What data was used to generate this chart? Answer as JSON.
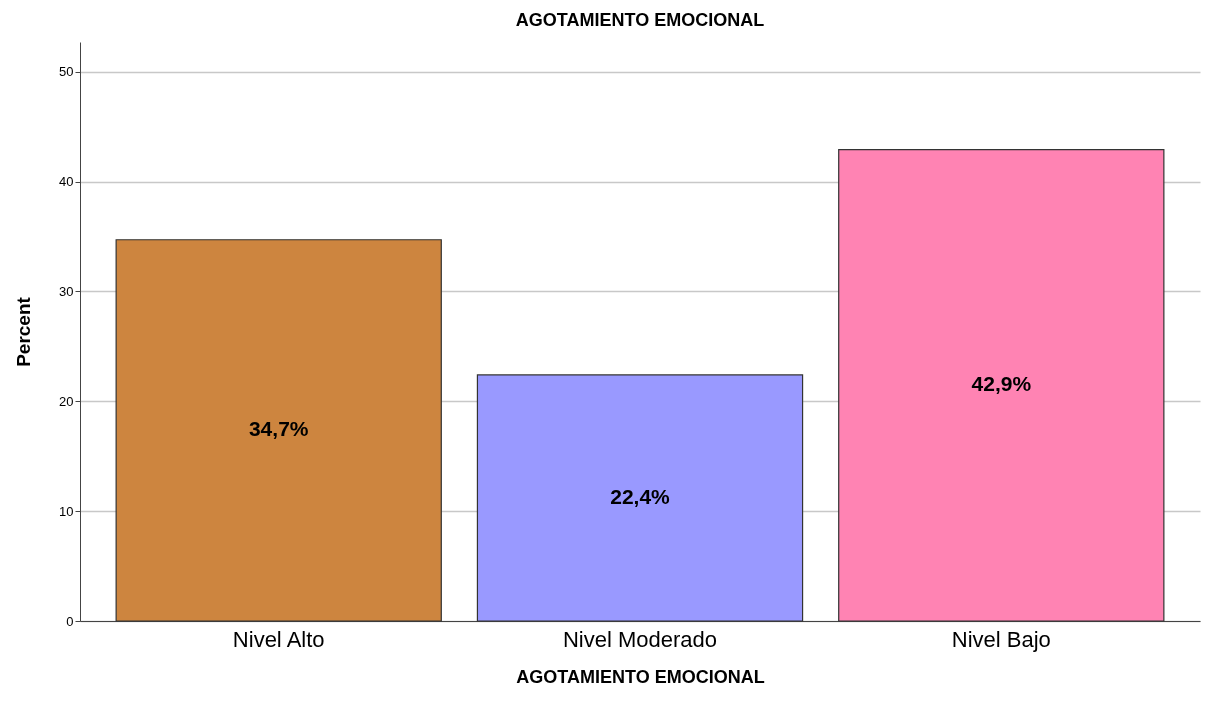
{
  "chart_data": {
    "type": "bar",
    "title": "AGOTAMIENTO EMOCIONAL",
    "xlabel": "AGOTAMIENTO EMOCIONAL",
    "ylabel": "Percent",
    "categories": [
      "Nivel Alto",
      "Nivel Moderado",
      "Nivel Bajo"
    ],
    "values": [
      34.7,
      22.4,
      42.9
    ],
    "colors": [
      "#cd853f",
      "#9999ff",
      "#ff83b3"
    ],
    "value_labels": [
      "34,7%",
      "22,4%",
      "42,9%"
    ],
    "ylim": [
      0,
      52.7
    ],
    "yticks": [
      0,
      10,
      20,
      30,
      40,
      50
    ],
    "grid": "y",
    "legend": false
  }
}
